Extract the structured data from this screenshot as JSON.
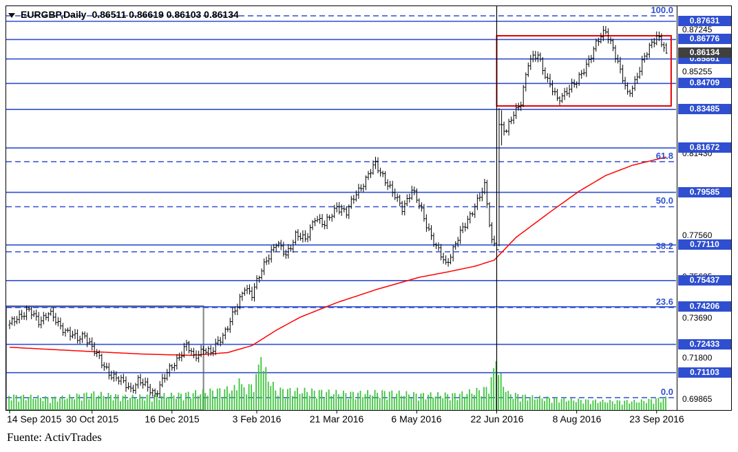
{
  "header": {
    "symbol": "EURGBP,Daily",
    "quotes": "0.86511 0.86619 0.86103 0.86134"
  },
  "footer": {
    "source": "Fuente: ActivTrades"
  },
  "colors": {
    "blue": "#2f4fd0",
    "gray": "#808080",
    "red_box": "#e80000",
    "ma": "#ff0000",
    "volume": "#3ec43e",
    "bars": "#000000",
    "current_bg": "#404040",
    "label_text": "#ffffff"
  },
  "chart_data": {
    "type": "ohlc",
    "symbol": "EURGBP",
    "timeframe": "Daily",
    "title": "EURGBP,Daily",
    "source_note": "Fuente: ActivTrades",
    "last_quote": {
      "open": 0.86511,
      "high": 0.86619,
      "low": 0.86103,
      "close": 0.86134
    },
    "current_price": 0.86134,
    "grid": false,
    "legend_position": "none",
    "x_axis": {
      "labels": [
        "14 Sep 2015",
        "30 Oct 2015",
        "16 Dec 2015",
        "3 Feb 2016",
        "21 Mar 2016",
        "6 May 2016",
        "22 Jun 2016",
        "8 Aug 2016",
        "23 Sep 2016"
      ],
      "label_indices": [
        0,
        34,
        67,
        102,
        135,
        168,
        201,
        234,
        267
      ]
    },
    "y_axis": {
      "max": 0.88375,
      "min": 0.69315,
      "ticks": [
        0.87245,
        0.85255,
        0.8143,
        0.7756,
        0.75625,
        0.7369,
        0.718,
        0.69865
      ]
    },
    "price_lines": [
      0.87631,
      0.86776,
      0.85861,
      0.84709,
      0.83485,
      0.81672,
      0.79585,
      0.7711,
      0.75437,
      0.74206,
      0.72433,
      0.71103
    ],
    "fib_levels": [
      {
        "label": "100.0",
        "price": 0.8789
      },
      {
        "label": "61.8",
        "price": 0.8103
      },
      {
        "label": "50.0",
        "price": 0.7891
      },
      {
        "label": "38.2",
        "price": 0.7679
      },
      {
        "label": "23.6",
        "price": 0.7417
      },
      {
        "label": "0.0",
        "price": 0.6993
      }
    ],
    "bars": {
      "count": 272,
      "close_anchors": [
        [
          0,
          0.7335
        ],
        [
          3,
          0.7375
        ],
        [
          8,
          0.7398
        ],
        [
          12,
          0.7355
        ],
        [
          16,
          0.7392
        ],
        [
          20,
          0.7338
        ],
        [
          24,
          0.7305
        ],
        [
          28,
          0.7262
        ],
        [
          31,
          0.7292
        ],
        [
          34,
          0.7232
        ],
        [
          38,
          0.7152
        ],
        [
          42,
          0.7103
        ],
        [
          46,
          0.7068
        ],
        [
          50,
          0.7035
        ],
        [
          53,
          0.7075
        ],
        [
          56,
          0.7045
        ],
        [
          60,
          0.7015
        ],
        [
          63,
          0.707
        ],
        [
          66,
          0.7122
        ],
        [
          70,
          0.7192
        ],
        [
          73,
          0.7238
        ],
        [
          76,
          0.718
        ],
        [
          80,
          0.7228
        ],
        [
          83,
          0.7196
        ],
        [
          86,
          0.7255
        ],
        [
          90,
          0.733
        ],
        [
          94,
          0.742
        ],
        [
          97,
          0.752
        ],
        [
          100,
          0.7478
        ],
        [
          103,
          0.756
        ],
        [
          106,
          0.7648
        ],
        [
          110,
          0.7718
        ],
        [
          114,
          0.7662
        ],
        [
          118,
          0.7762
        ],
        [
          122,
          0.773
        ],
        [
          126,
          0.7848
        ],
        [
          130,
          0.78
        ],
        [
          135,
          0.7898
        ],
        [
          139,
          0.7858
        ],
        [
          143,
          0.7958
        ],
        [
          147,
          0.8018
        ],
        [
          151,
          0.8092
        ],
        [
          154,
          0.8042
        ],
        [
          158,
          0.7952
        ],
        [
          162,
          0.7888
        ],
        [
          166,
          0.7968
        ],
        [
          169,
          0.7898
        ],
        [
          172,
          0.7812
        ],
        [
          176,
          0.77
        ],
        [
          180,
          0.7618
        ],
        [
          184,
          0.7722
        ],
        [
          188,
          0.7802
        ],
        [
          192,
          0.7902
        ],
        [
          196,
          0.7982
        ],
        [
          199,
          0.773
        ],
        [
          201,
          0.7712
        ],
        [
          202,
          0.828
        ],
        [
          205,
          0.824
        ],
        [
          208,
          0.833
        ],
        [
          211,
          0.839
        ],
        [
          214,
          0.856
        ],
        [
          218,
          0.8612
        ],
        [
          222,
          0.8482
        ],
        [
          226,
          0.8392
        ],
        [
          230,
          0.8442
        ],
        [
          234,
          0.8472
        ],
        [
          238,
          0.8562
        ],
        [
          242,
          0.8652
        ],
        [
          246,
          0.8722
        ],
        [
          249,
          0.8642
        ],
        [
          252,
          0.8522
        ],
        [
          255,
          0.8422
        ],
        [
          258,
          0.8482
        ],
        [
          261,
          0.8562
        ],
        [
          264,
          0.8642
        ],
        [
          267,
          0.8702
        ],
        [
          269,
          0.8662
        ],
        [
          271,
          0.86134
        ]
      ],
      "special": [
        {
          "i": 202,
          "high": 0.8355,
          "low": 0.7705
        },
        {
          "i": 203,
          "high": 0.8345,
          "low": 0.818
        }
      ]
    },
    "ma": {
      "color": "red",
      "anchors": [
        [
          0,
          0.723
        ],
        [
          30,
          0.7212
        ],
        [
          55,
          0.7198
        ],
        [
          75,
          0.7192
        ],
        [
          90,
          0.7205
        ],
        [
          100,
          0.7238
        ],
        [
          110,
          0.731
        ],
        [
          120,
          0.7372
        ],
        [
          135,
          0.744
        ],
        [
          152,
          0.7504
        ],
        [
          169,
          0.7559
        ],
        [
          181,
          0.7585
        ],
        [
          192,
          0.7611
        ],
        [
          200,
          0.764
        ],
        [
          209,
          0.7747
        ],
        [
          223,
          0.7866
        ],
        [
          235,
          0.7964
        ],
        [
          246,
          0.8038
        ],
        [
          257,
          0.8086
        ],
        [
          271,
          0.8125
        ]
      ]
    },
    "volume": {
      "envelope_anchors": [
        [
          0,
          24
        ],
        [
          20,
          20
        ],
        [
          34,
          28
        ],
        [
          50,
          22
        ],
        [
          70,
          26
        ],
        [
          88,
          34
        ],
        [
          100,
          40
        ],
        [
          104,
          77
        ],
        [
          110,
          34
        ],
        [
          125,
          32
        ],
        [
          140,
          28
        ],
        [
          155,
          30
        ],
        [
          170,
          26
        ],
        [
          185,
          26
        ],
        [
          197,
          36
        ],
        [
          201,
          71
        ],
        [
          206,
          28
        ],
        [
          215,
          22
        ],
        [
          230,
          18
        ],
        [
          245,
          15
        ],
        [
          260,
          15
        ],
        [
          271,
          20
        ]
      ],
      "spikes": [
        [
          95,
          46
        ],
        [
          104,
          77
        ],
        [
          201,
          71
        ]
      ]
    },
    "annotations": {
      "gray_box": {
        "i1": 0,
        "i2": 80,
        "price_top": 0.7424,
        "price_bottom": 0.6935
      },
      "red_box": {
        "i1": 201,
        "i2": 273,
        "price_top": 0.8695,
        "price_bottom": 0.8365
      },
      "event_vline_index": 201
    }
  }
}
